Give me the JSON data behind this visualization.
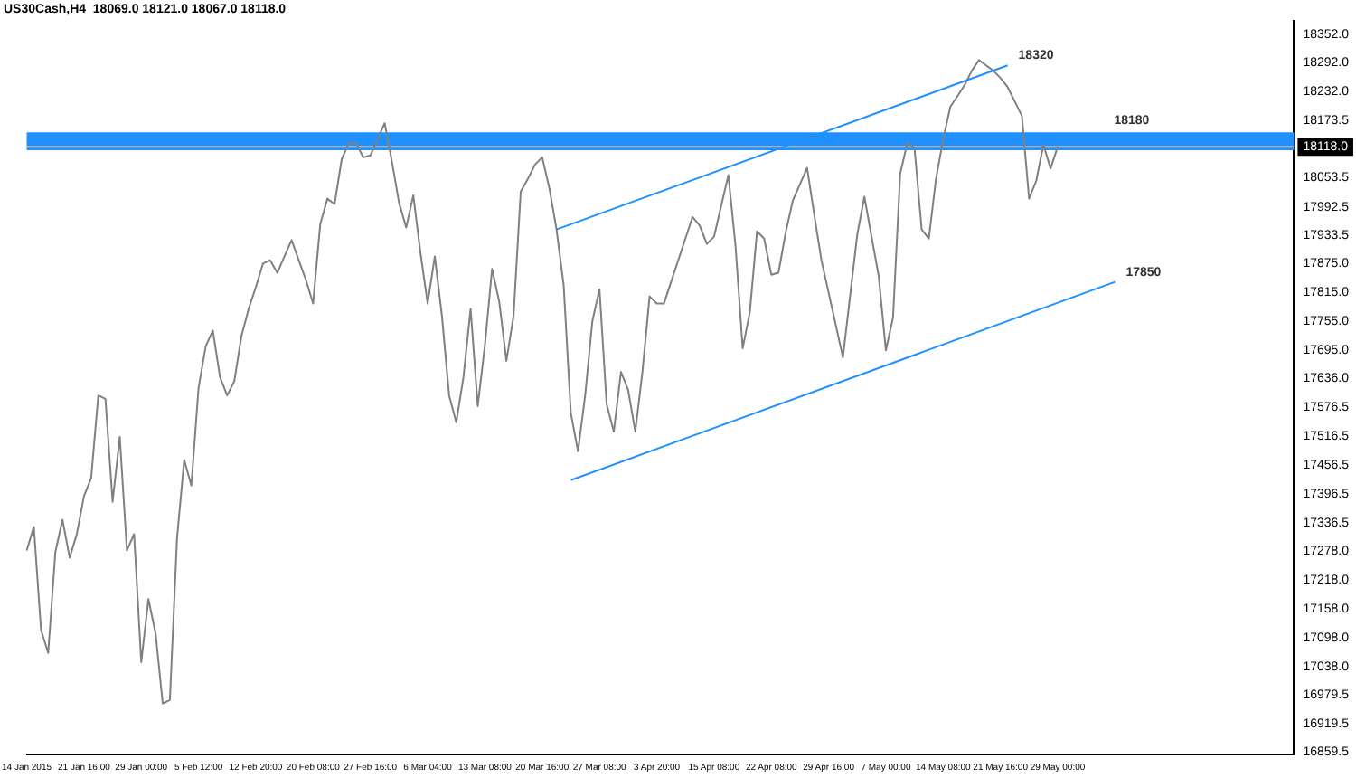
{
  "chart_data": {
    "type": "line",
    "title": "US30Cash,H4  18069.0 18121.0 18067.0 18118.0",
    "categories": [
      "14 Jan 2015",
      null,
      null,
      null,
      null,
      null,
      null,
      null,
      "21 Jan 16:00",
      null,
      null,
      null,
      null,
      null,
      null,
      null,
      "29 Jan 00:00",
      null,
      null,
      null,
      null,
      null,
      null,
      null,
      "5 Feb 12:00",
      null,
      null,
      null,
      null,
      null,
      null,
      null,
      "12 Feb 20:00",
      null,
      null,
      null,
      null,
      null,
      null,
      null,
      "20 Feb 08:00",
      null,
      null,
      null,
      null,
      null,
      null,
      null,
      "27 Feb 16:00",
      null,
      null,
      null,
      null,
      null,
      null,
      null,
      "6 Mar 04:00",
      null,
      null,
      null,
      null,
      null,
      null,
      null,
      "13 Mar 08:00",
      null,
      null,
      null,
      null,
      null,
      null,
      null,
      "20 Mar 16:00",
      null,
      null,
      null,
      null,
      null,
      null,
      null,
      "27 Mar 08:00",
      null,
      null,
      null,
      null,
      null,
      null,
      null,
      "3 Apr 20:00",
      null,
      null,
      null,
      null,
      null,
      null,
      null,
      "15 Apr 08:00",
      null,
      null,
      null,
      null,
      null,
      null,
      null,
      "22 Apr 08:00",
      null,
      null,
      null,
      null,
      null,
      null,
      null,
      "29 Apr 16:00",
      null,
      null,
      null,
      null,
      null,
      null,
      null,
      "7 May 00:00",
      null,
      null,
      null,
      null,
      null,
      null,
      null,
      "14 May 08:00",
      null,
      null,
      null,
      null,
      null,
      null,
      null,
      "21 May 16:00",
      null,
      null,
      null,
      null,
      null,
      null,
      null,
      "29 May 00:00",
      null,
      null,
      null,
      null,
      null,
      null,
      null,
      null,
      null,
      null,
      null,
      null,
      null,
      null,
      null,
      null,
      null,
      null,
      null,
      null,
      null,
      null,
      null,
      null,
      null,
      null,
      null,
      null,
      null,
      null,
      null,
      null,
      null
    ],
    "series": [
      {
        "color": "#808080",
        "values": [
          17279,
          17328,
          17114,
          17066,
          17275,
          17343,
          17264,
          17313,
          17392,
          17429,
          17601,
          17594,
          17380,
          17515,
          17279,
          17313,
          17047,
          17178,
          17107,
          16961,
          16968,
          17305,
          17467,
          17414,
          17616,
          17703,
          17736,
          17639,
          17601,
          17631,
          17725,
          17781,
          17826,
          17875,
          17882,
          17856,
          17890,
          17924,
          17882,
          17841,
          17792,
          17957,
          18010,
          17999,
          18092,
          18126,
          18126,
          18096,
          18100,
          18133,
          18167,
          18088,
          18002,
          17950,
          18017,
          17897,
          17792,
          17890,
          17766,
          17601,
          17545,
          17639,
          17781,
          17579,
          17706,
          17864,
          17796,
          17673,
          17766,
          18025,
          18051,
          18081,
          18096,
          18032,
          17946,
          17830,
          17564,
          17485,
          17601,
          17755,
          17822,
          17583,
          17526,
          17650,
          17613,
          17526,
          17650,
          17807,
          17792,
          17792,
          17837,
          17882,
          17927,
          17972,
          17954,
          17916,
          17931,
          17995,
          18059,
          17912,
          17699,
          17774,
          17942,
          17927,
          17852,
          17856,
          17939,
          18006,
          18040,
          18074,
          17976,
          17882,
          17815,
          17748,
          17680,
          17807,
          17935,
          18014,
          17931,
          17849,
          17695,
          17763,
          18062,
          18126,
          18115,
          17946,
          17927,
          18051,
          18133,
          18201,
          18223,
          18246,
          18276,
          18298,
          18287,
          18276,
          18261,
          18242,
          18212,
          18182,
          18010,
          18047,
          18122,
          18073,
          18118,
          null,
          null,
          null,
          null,
          null,
          null,
          null,
          null,
          null,
          null,
          null,
          null,
          null,
          null,
          null,
          null,
          null,
          null,
          null,
          null,
          null,
          null,
          null,
          null,
          null,
          null,
          null,
          null,
          null,
          null,
          null,
          null,
          null
        ]
      },
      {
        "name": "18320",
        "color": "#1e90ff",
        "values": [
          null,
          null,
          null,
          null,
          null,
          null,
          null,
          null,
          null,
          null,
          null,
          null,
          null,
          null,
          null,
          null,
          null,
          null,
          null,
          null,
          null,
          null,
          null,
          null,
          null,
          null,
          null,
          null,
          null,
          null,
          null,
          null,
          null,
          null,
          null,
          null,
          null,
          null,
          null,
          null,
          null,
          null,
          null,
          null,
          null,
          null,
          null,
          null,
          null,
          null,
          null,
          null,
          null,
          null,
          null,
          null,
          null,
          null,
          null,
          null,
          null,
          null,
          null,
          null,
          null,
          null,
          null,
          null,
          null,
          null,
          null,
          null,
          null,
          null,
          17946,
          null,
          null,
          null,
          null,
          null,
          null,
          null,
          null,
          null,
          null,
          null,
          null,
          null,
          null,
          null,
          null,
          null,
          null,
          null,
          null,
          null,
          null,
          null,
          null,
          null,
          null,
          null,
          null,
          null,
          null,
          null,
          null,
          null,
          null,
          null,
          null,
          null,
          null,
          null,
          null,
          null,
          null,
          null,
          null,
          null,
          null,
          null,
          null,
          null,
          null,
          null,
          null,
          null,
          null,
          null,
          null,
          null,
          null,
          null,
          null,
          null,
          null,
          18287,
          null,
          null,
          null,
          null,
          null,
          null,
          null,
          null,
          null,
          null,
          null,
          null,
          null,
          null,
          null,
          null,
          null,
          null,
          null,
          null,
          null,
          null,
          null,
          null,
          null,
          null,
          null,
          null,
          null,
          null,
          null,
          null,
          null,
          null,
          null,
          null,
          null,
          null,
          null,
          null
        ]
      },
      {
        "name": "17850",
        "color": "#1e90ff",
        "values": [
          null,
          null,
          null,
          null,
          null,
          null,
          null,
          null,
          null,
          null,
          null,
          null,
          null,
          null,
          null,
          null,
          null,
          null,
          null,
          null,
          null,
          null,
          null,
          null,
          null,
          null,
          null,
          null,
          null,
          null,
          null,
          null,
          null,
          null,
          null,
          null,
          null,
          null,
          null,
          null,
          null,
          null,
          null,
          null,
          null,
          null,
          null,
          null,
          null,
          null,
          null,
          null,
          null,
          null,
          null,
          null,
          null,
          null,
          null,
          null,
          null,
          null,
          null,
          null,
          null,
          null,
          null,
          null,
          null,
          null,
          null,
          null,
          null,
          null,
          null,
          null,
          17425,
          null,
          null,
          null,
          null,
          null,
          null,
          null,
          null,
          null,
          null,
          null,
          null,
          null,
          null,
          null,
          null,
          null,
          null,
          null,
          null,
          null,
          null,
          null,
          null,
          null,
          null,
          null,
          null,
          null,
          null,
          null,
          null,
          null,
          null,
          null,
          null,
          null,
          null,
          null,
          null,
          null,
          null,
          null,
          null,
          null,
          null,
          null,
          null,
          null,
          null,
          null,
          null,
          null,
          null,
          null,
          null,
          null,
          null,
          null,
          null,
          null,
          null,
          null,
          null,
          null,
          null,
          null,
          null,
          null,
          null,
          null,
          null,
          null,
          null,
          null,
          17837,
          null,
          null,
          null,
          null,
          null,
          null,
          null,
          null,
          null,
          null,
          null,
          null,
          null,
          null,
          null,
          null,
          null,
          null,
          null,
          null,
          null,
          null,
          null,
          null,
          null
        ]
      }
    ],
    "ylim": [
      16855,
      18380
    ],
    "yticks": [
      {
        "value": 18352,
        "label": "18352.0"
      },
      {
        "value": 18292,
        "label": "18292.0"
      },
      {
        "value": 18232,
        "label": "18232.0"
      },
      {
        "value": 18173.5,
        "label": "18173.5"
      },
      {
        "value": 18053.5,
        "label": "18053.5"
      },
      {
        "value": 17992.5,
        "label": "17992.5"
      },
      {
        "value": 17933.5,
        "label": "17933.5"
      },
      {
        "value": 17875,
        "label": "17875.0"
      },
      {
        "value": 17815,
        "label": "17815.0"
      },
      {
        "value": 17755,
        "label": "17755.0"
      },
      {
        "value": 17695,
        "label": "17695.0"
      },
      {
        "value": 17636,
        "label": "17636.0"
      },
      {
        "value": 17576.5,
        "label": "17576.5"
      },
      {
        "value": 17516.5,
        "label": "17516.5"
      },
      {
        "value": 17456.5,
        "label": "17456.5"
      },
      {
        "value": 17396.5,
        "label": "17396.5"
      },
      {
        "value": 17336.5,
        "label": "17336.5"
      },
      {
        "value": 17278,
        "label": "17278.0"
      },
      {
        "value": 17218,
        "label": "17218.0"
      },
      {
        "value": 17158,
        "label": "17158.0"
      },
      {
        "value": 17098,
        "label": "17098.0"
      },
      {
        "value": 17038,
        "label": "17038.0"
      },
      {
        "value": 16979.5,
        "label": "16979.5"
      },
      {
        "value": 16919.5,
        "label": "16919.5"
      },
      {
        "value": 16859.5,
        "label": "16859.5"
      }
    ],
    "bands": [
      {
        "axis": "y",
        "from": 18111,
        "to": 18148,
        "label": "18180",
        "color": "#1e90ff"
      }
    ],
    "ref_lines": [
      {
        "axis": "y",
        "value": 18118,
        "label": "18118.0",
        "color": "#c0c0c0"
      }
    ],
    "grid": false,
    "legend": false,
    "marker": "none",
    "line_style": "solid"
  }
}
